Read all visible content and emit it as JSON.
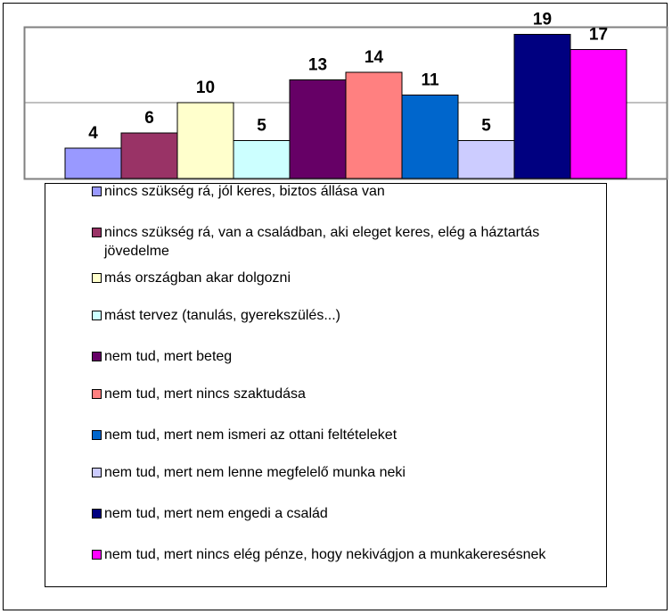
{
  "chart_data": {
    "type": "bar",
    "ylim": [
      0,
      20
    ],
    "yticks": [
      0,
      10,
      20
    ],
    "grid": true,
    "series": [
      {
        "name": "nincs szükség rá, jól keres, biztos állása van",
        "color": "#9999FF",
        "values": [
          4
        ]
      },
      {
        "name": "nincs szükség rá, van a családban, aki eleget keres, elég a háztartás jövedelme",
        "color": "#993366",
        "values": [
          6
        ]
      },
      {
        "name": "más országban akar dolgozni",
        "color": "#FFFFCC",
        "values": [
          10
        ]
      },
      {
        "name": "mást tervez (tanulás, gyerekszülés...)",
        "color": "#CCFFFF",
        "values": [
          5
        ]
      },
      {
        "name": "nem tud, mert beteg",
        "color": "#660066",
        "values": [
          13
        ]
      },
      {
        "name": "nem tud, mert nincs szaktudása",
        "color": "#FF8080",
        "values": [
          14
        ]
      },
      {
        "name": "nem tud, mert nem ismeri az ottani feltételeket",
        "color": "#0066CC",
        "values": [
          11
        ]
      },
      {
        "name": "nem tud, mert nem lenne megfelelő munka neki",
        "color": "#CCCCFF",
        "values": [
          5
        ]
      },
      {
        "name": "nem tud, mert nem engedi a család",
        "color": "#000080",
        "values": [
          19
        ]
      },
      {
        "name": "nem tud, mert nincs elég pénze, hogy nekivágjon a munkakeresésnek",
        "color": "#FF00FF",
        "values": [
          17
        ]
      }
    ]
  }
}
